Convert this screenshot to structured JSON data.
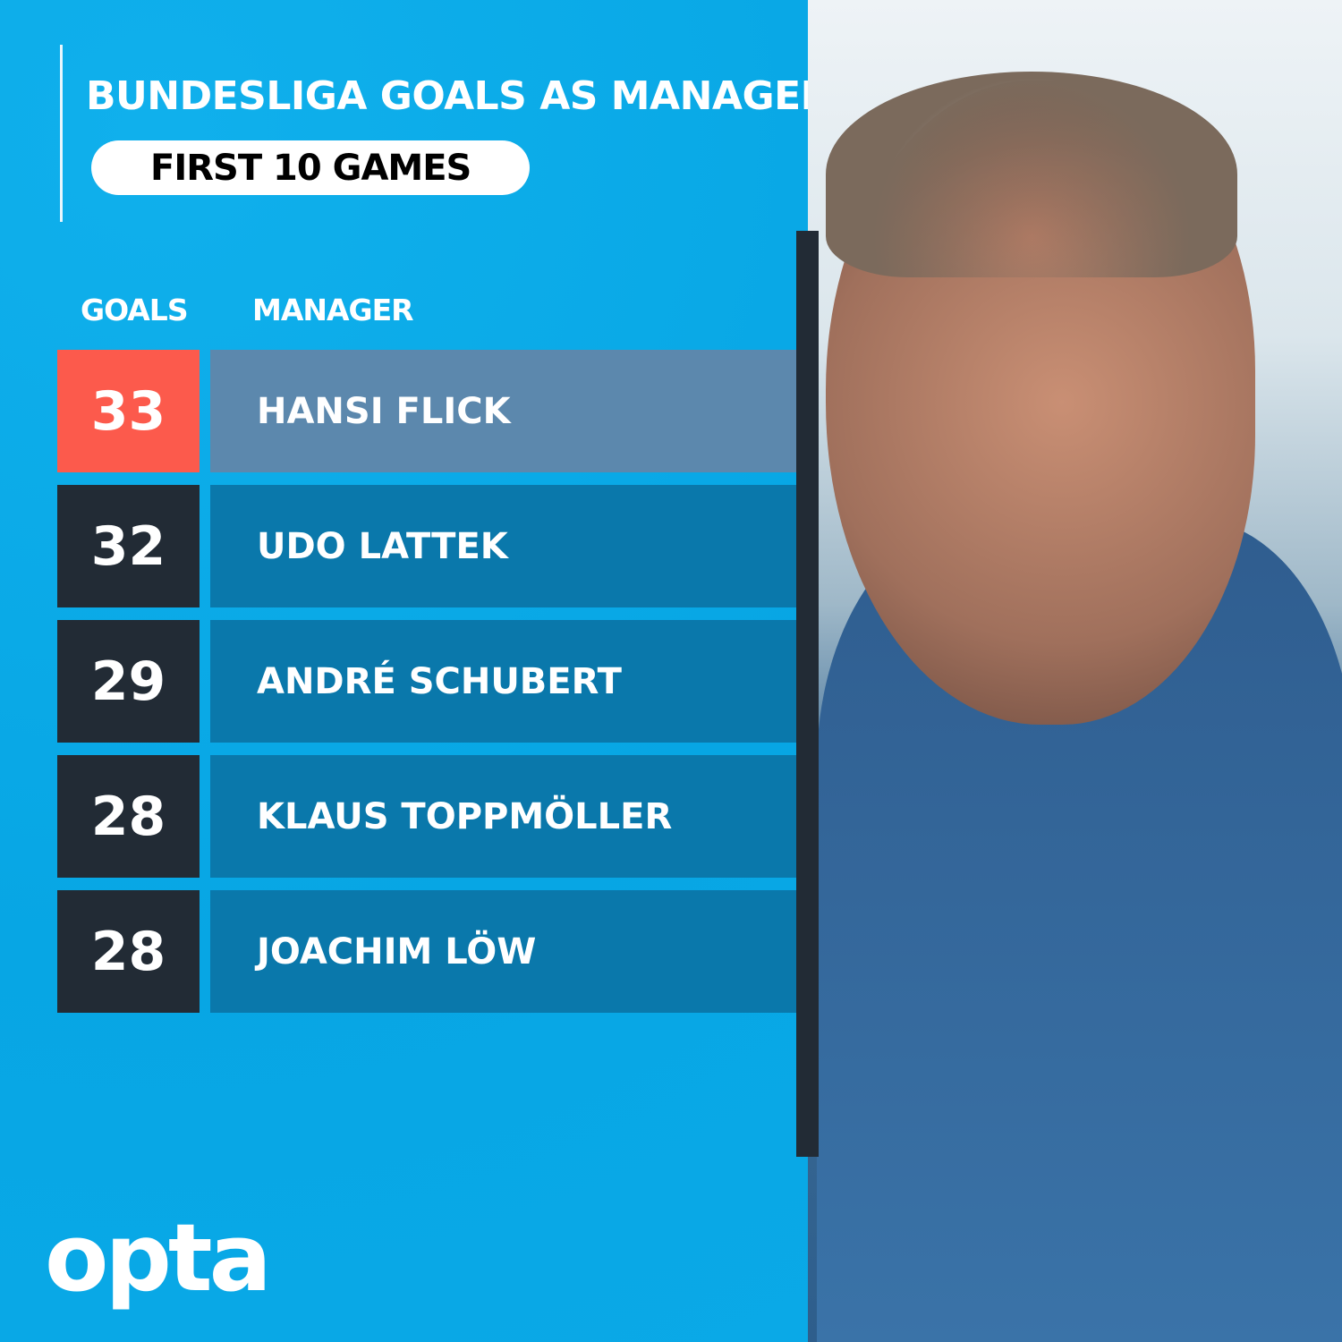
{
  "title": "BUNDESLIGA GOALS AS MANAGER",
  "subtitle": "FIRST 10 GAMES",
  "logo": "opta",
  "colors": {
    "background": "#0aabe8",
    "highlight_goals": "#fc5a4c",
    "highlight_row": "#5c88ad",
    "goals_box": "#222b35",
    "row": "#0a78ab"
  },
  "chart_data": {
    "type": "table",
    "title": "BUNDESLIGA GOALS AS MANAGER",
    "subtitle": "FIRST 10 GAMES",
    "columns": [
      "GOALS",
      "MANAGER"
    ],
    "rows": [
      {
        "goals": "33",
        "manager": "HANSI FLICK",
        "highlighted": true
      },
      {
        "goals": "32",
        "manager": "UDO LATTEK",
        "highlighted": false
      },
      {
        "goals": "29",
        "manager": "ANDRÉ SCHUBERT",
        "highlighted": false
      },
      {
        "goals": "28",
        "manager": "KLAUS TOPPMÖLLER",
        "highlighted": false
      },
      {
        "goals": "28",
        "manager": "JOACHIM LÖW",
        "highlighted": false
      }
    ]
  }
}
